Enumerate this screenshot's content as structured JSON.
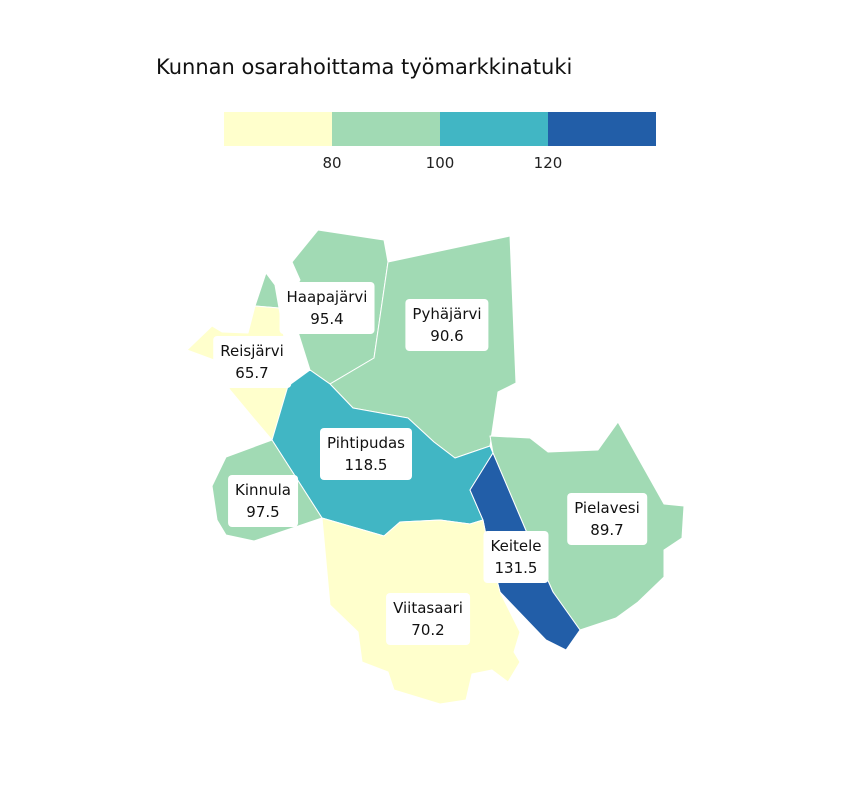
{
  "title": "Kunnan osarahoittama työmarkkinatuki",
  "legend": {
    "bins": [
      {
        "color": "#ffffcc"
      },
      {
        "color": "#a1dab4"
      },
      {
        "color": "#41b6c4"
      },
      {
        "color": "#225ea8"
      }
    ],
    "ticks": [
      "80",
      "100",
      "120"
    ]
  },
  "regions": [
    {
      "id": "haapajarvi",
      "name": "Haapajärvi",
      "value": "95.4",
      "color": "#a1dab4"
    },
    {
      "id": "pyhajarvi",
      "name": "Pyhäjärvi",
      "value": "90.6",
      "color": "#a1dab4"
    },
    {
      "id": "reisjarvi",
      "name": "Reisjärvi",
      "value": "65.7",
      "color": "#ffffcc"
    },
    {
      "id": "pihtipudas",
      "name": "Pihtipudas",
      "value": "118.5",
      "color": "#41b6c4"
    },
    {
      "id": "kinnula",
      "name": "Kinnula",
      "value": "97.5",
      "color": "#a1dab4"
    },
    {
      "id": "pielavesi",
      "name": "Pielavesi",
      "value": "89.7",
      "color": "#a1dab4"
    },
    {
      "id": "keitele",
      "name": "Keitele",
      "value": "131.5",
      "color": "#225ea8"
    },
    {
      "id": "viitasaari",
      "name": "Viitasaari",
      "value": "70.2",
      "color": "#ffffcc"
    }
  ]
}
